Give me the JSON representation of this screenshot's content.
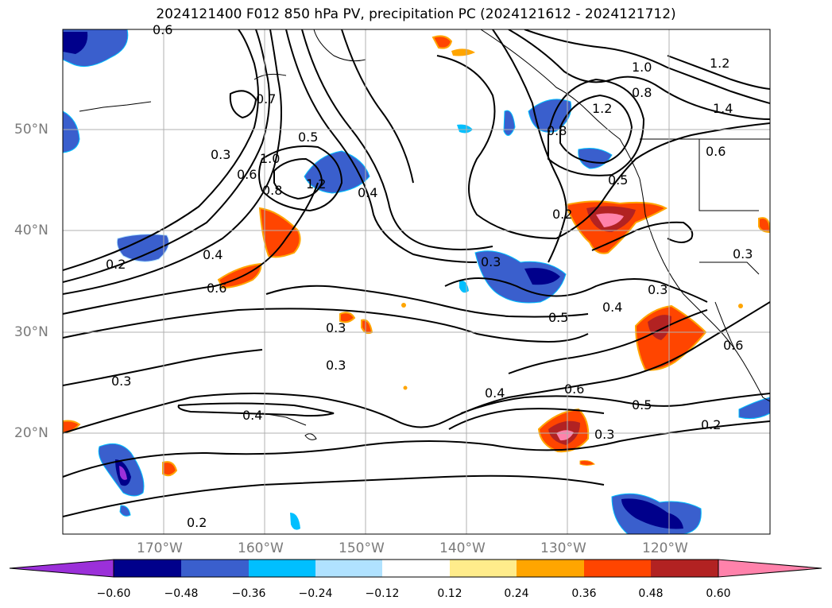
{
  "title": "2024121400 F012 850 hPa PV, precipitation PC (2024121612 - 2024121712)",
  "lat_labels": [
    "50°N",
    "40°N",
    "30°N",
    "20°N"
  ],
  "lon_labels": [
    "170°W",
    "160°W",
    "150°W",
    "140°W",
    "130°W",
    "120°W"
  ],
  "colorbar": {
    "ticks": [
      "−0.60",
      "−0.48",
      "−0.36",
      "−0.24",
      "−0.12",
      "0.12",
      "0.24",
      "0.36",
      "0.48",
      "0.60"
    ],
    "colors": [
      "#9b30d9",
      "#00008b",
      "#3a5fcd",
      "#00bfff",
      "#b0e2ff",
      "#ffffff",
      "#ffec8b",
      "#ffa500",
      "#ff4500",
      "#b22222",
      "#ff82ab"
    ]
  },
  "contour_labels": [
    "0.6",
    "0.7",
    "0.5",
    "0.4",
    "1.2",
    "1.0",
    "0.8",
    "0.6",
    "0.3",
    "0.2",
    "0.4",
    "0.6",
    "0.3",
    "0.3",
    "0.3",
    "0.4",
    "0.2",
    "0.3",
    "0.5",
    "0.4",
    "0.6",
    "0.5",
    "0.3",
    "0.2",
    "0.3",
    "1.0",
    "0.8",
    "1.2",
    "1.4",
    "1.2",
    "0.6",
    "0.5",
    "0.2",
    "0.8",
    "0.4",
    "0.6",
    "0.3"
  ]
}
